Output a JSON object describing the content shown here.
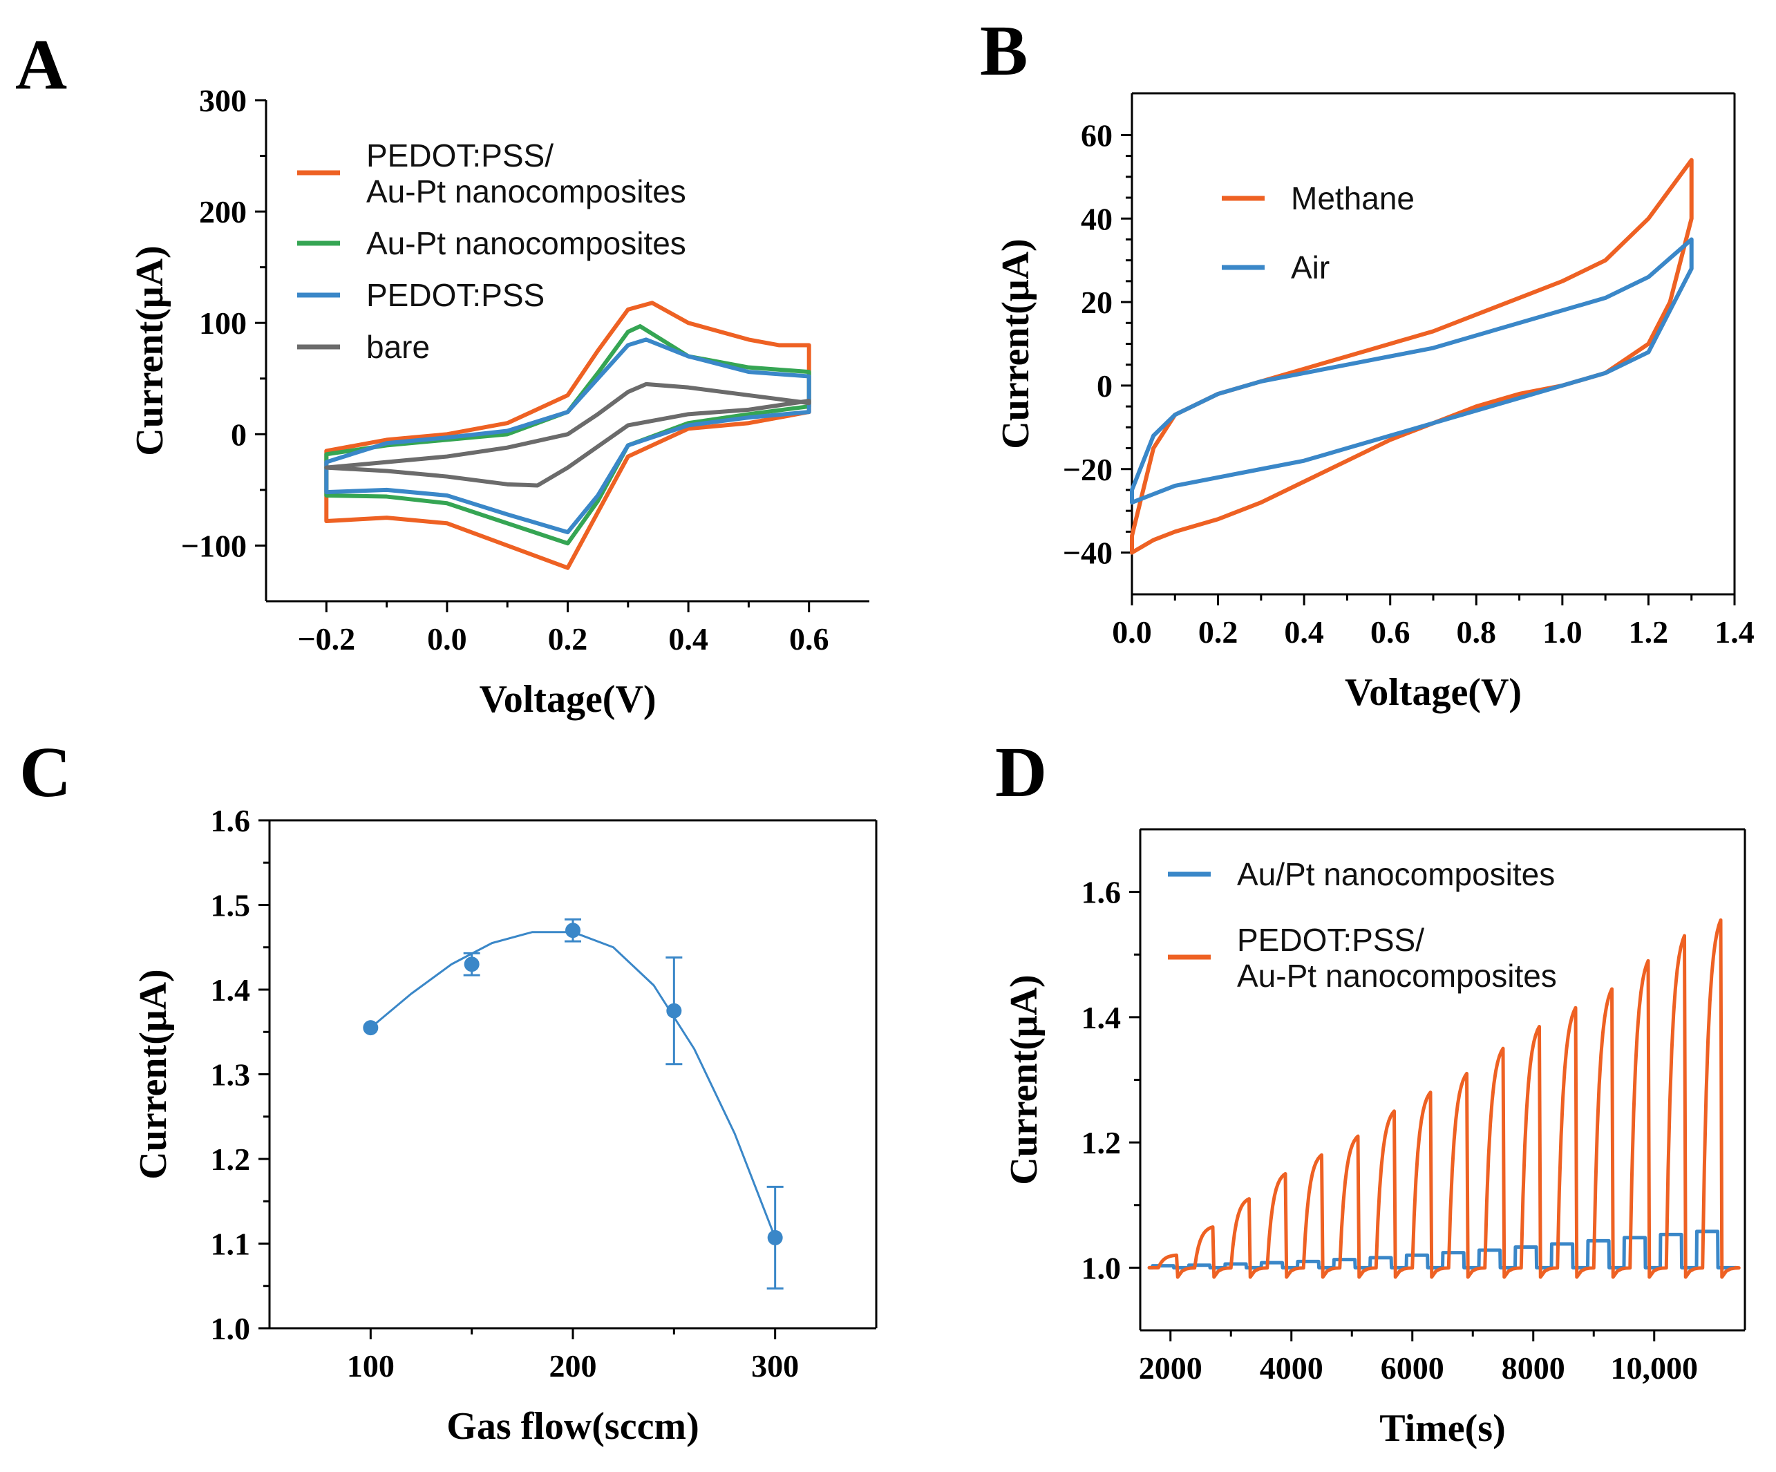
{
  "figure_title": "",
  "colors": {
    "orange": "#EE6123",
    "green": "#35A553",
    "blue": "#3A87C8",
    "gray": "#6B6B6B",
    "axis": "#000000"
  },
  "chart_data": [
    {
      "panel": "A",
      "type": "line",
      "title": "",
      "xlabel": "Voltage(V)",
      "ylabel": "Current(μA)",
      "xlim": [
        -0.3,
        0.7
      ],
      "ylim": [
        -150,
        300
      ],
      "xticks": [
        -0.2,
        0.0,
        0.2,
        0.4,
        0.6
      ],
      "xtick_labels": [
        "−0.2",
        "0.0",
        "0.2",
        "0.4",
        "0.6"
      ],
      "yticks": [
        -100,
        0,
        100,
        200,
        300
      ],
      "ytick_labels": [
        "−100",
        "0",
        "100",
        "200",
        "300"
      ],
      "legend_position": "top-left",
      "legend_entries": [
        {
          "label_lines": [
            "PEDOT:PSS/",
            "Au-Pt nanocomposites"
          ],
          "color": "#EE6123"
        },
        {
          "label_lines": [
            "Au-Pt nanocomposites"
          ],
          "color": "#35A553"
        },
        {
          "label_lines": [
            "PEDOT:PSS"
          ],
          "color": "#3A87C8"
        },
        {
          "label_lines": [
            "bare"
          ],
          "color": "#6B6B6B"
        }
      ],
      "series": [
        {
          "name": "PEDOT:PSS/ Au-Pt nanocomposites",
          "color": "#EE6123",
          "x": [
            -0.2,
            -0.1,
            0.0,
            0.1,
            0.2,
            0.25,
            0.3,
            0.34,
            0.4,
            0.5,
            0.55,
            0.6,
            0.6,
            0.5,
            0.4,
            0.3,
            0.25,
            0.2,
            0.1,
            0.0,
            -0.1,
            -0.2,
            -0.2
          ],
          "y": [
            -15,
            -5,
            0,
            10,
            35,
            75,
            112,
            118,
            100,
            85,
            80,
            80,
            20,
            10,
            5,
            -20,
            -70,
            -120,
            -100,
            -80,
            -75,
            -78,
            -15
          ]
        },
        {
          "name": "Au-Pt nanocomposites",
          "color": "#35A553",
          "x": [
            -0.2,
            -0.1,
            0.0,
            0.1,
            0.2,
            0.25,
            0.3,
            0.32,
            0.4,
            0.5,
            0.6,
            0.6,
            0.5,
            0.4,
            0.3,
            0.25,
            0.2,
            0.1,
            0.0,
            -0.1,
            -0.2,
            -0.2
          ],
          "y": [
            -18,
            -10,
            -5,
            0,
            20,
            55,
            92,
            97,
            70,
            60,
            56,
            25,
            18,
            10,
            -10,
            -60,
            -98,
            -80,
            -62,
            -56,
            -55,
            -18
          ]
        },
        {
          "name": "PEDOT:PSS",
          "color": "#3A87C8",
          "x": [
            -0.2,
            -0.1,
            0.0,
            0.1,
            0.2,
            0.25,
            0.3,
            0.33,
            0.4,
            0.5,
            0.6,
            0.6,
            0.5,
            0.4,
            0.3,
            0.25,
            0.2,
            0.1,
            0.0,
            -0.1,
            -0.2,
            -0.2
          ],
          "y": [
            -25,
            -8,
            -3,
            3,
            20,
            50,
            80,
            85,
            70,
            56,
            52,
            20,
            15,
            8,
            -10,
            -55,
            -88,
            -72,
            -55,
            -50,
            -52,
            -25
          ]
        },
        {
          "name": "bare",
          "color": "#6B6B6B",
          "x": [
            -0.2,
            -0.1,
            0.0,
            0.1,
            0.2,
            0.25,
            0.3,
            0.33,
            0.4,
            0.5,
            0.6,
            0.6,
            0.5,
            0.4,
            0.3,
            0.2,
            0.15,
            0.1,
            0.0,
            -0.1,
            -0.2
          ],
          "y": [
            -30,
            -25,
            -20,
            -12,
            0,
            18,
            38,
            45,
            42,
            35,
            28,
            30,
            22,
            18,
            8,
            -30,
            -46,
            -45,
            -38,
            -33,
            -30
          ]
        }
      ]
    },
    {
      "panel": "B",
      "type": "line",
      "title": "",
      "xlabel": "Voltage(V)",
      "ylabel": "Current(μA)",
      "xlim": [
        0.0,
        1.4
      ],
      "ylim": [
        -50,
        70
      ],
      "xticks": [
        0.0,
        0.2,
        0.4,
        0.6,
        0.8,
        1.0,
        1.2,
        1.4
      ],
      "xtick_labels": [
        "0.0",
        "0.2",
        "0.4",
        "0.6",
        "0.8",
        "1.0",
        "1.2",
        "1.4"
      ],
      "yticks": [
        -40,
        -20,
        0,
        20,
        40,
        60
      ],
      "ytick_labels": [
        "−40",
        "−20",
        "0",
        "20",
        "40",
        "60"
      ],
      "legend_position": "upper-left",
      "legend_entries": [
        {
          "label_lines": [
            "Methane"
          ],
          "color": "#EE6123"
        },
        {
          "label_lines": [
            "Air"
          ],
          "color": "#3A87C8"
        }
      ],
      "series": [
        {
          "name": "Methane",
          "color": "#EE6123",
          "x": [
            0.0,
            0.05,
            0.1,
            0.2,
            0.3,
            0.4,
            0.5,
            0.6,
            0.7,
            0.8,
            0.9,
            1.0,
            1.1,
            1.2,
            1.3,
            1.3,
            1.25,
            1.2,
            1.1,
            1.0,
            0.9,
            0.8,
            0.7,
            0.6,
            0.5,
            0.4,
            0.3,
            0.2,
            0.1,
            0.05,
            0.0,
            0.0
          ],
          "y": [
            -36,
            -15,
            -7,
            -2,
            1,
            4,
            7,
            10,
            13,
            17,
            21,
            25,
            30,
            40,
            54,
            40,
            20,
            10,
            3,
            0,
            -2,
            -5,
            -9,
            -13,
            -18,
            -23,
            -28,
            -32,
            -35,
            -37,
            -40,
            -36
          ]
        },
        {
          "name": "Air",
          "color": "#3A87C8",
          "x": [
            0.0,
            0.05,
            0.1,
            0.2,
            0.3,
            0.4,
            0.5,
            0.6,
            0.7,
            0.8,
            0.9,
            1.0,
            1.1,
            1.2,
            1.3,
            1.3,
            1.2,
            1.1,
            1.0,
            0.9,
            0.8,
            0.7,
            0.6,
            0.5,
            0.4,
            0.3,
            0.2,
            0.1,
            0.05,
            0.0,
            0.0
          ],
          "y": [
            -25,
            -12,
            -7,
            -2,
            1,
            3,
            5,
            7,
            9,
            12,
            15,
            18,
            21,
            26,
            35,
            28,
            8,
            3,
            0,
            -3,
            -6,
            -9,
            -12,
            -15,
            -18,
            -20,
            -22,
            -24,
            -26,
            -28,
            -25
          ]
        }
      ]
    },
    {
      "panel": "C",
      "type": "scatter",
      "title": "",
      "xlabel": "Gas flow(sccm)",
      "ylabel": "Current(μA)",
      "xlim": [
        50,
        350
      ],
      "ylim": [
        1.0,
        1.6
      ],
      "xticks": [
        100,
        200,
        300
      ],
      "xtick_labels": [
        "100",
        "200",
        "300"
      ],
      "yticks": [
        1.0,
        1.1,
        1.2,
        1.3,
        1.4,
        1.5,
        1.6
      ],
      "ytick_labels": [
        "1.0",
        "1.1",
        "1.2",
        "1.3",
        "1.4",
        "1.5",
        "1.6"
      ],
      "series": [
        {
          "name": "Current",
          "color": "#3A87C8",
          "x": [
            100,
            150,
            200,
            250,
            300
          ],
          "y": [
            1.355,
            1.43,
            1.47,
            1.375,
            1.107
          ],
          "error": [
            0.0,
            0.013,
            0.013,
            0.063,
            0.06
          ]
        }
      ],
      "fit_curve": {
        "color": "#3A87C8",
        "x": [
          100,
          120,
          140,
          160,
          180,
          200,
          220,
          240,
          260,
          280,
          300
        ],
        "y": [
          1.355,
          1.395,
          1.43,
          1.455,
          1.468,
          1.468,
          1.45,
          1.405,
          1.33,
          1.23,
          1.107
        ]
      }
    },
    {
      "panel": "D",
      "type": "line",
      "title": "",
      "xlabel": "Time(s)",
      "ylabel": "Current(μA)",
      "xlim": [
        1500,
        11500
      ],
      "ylim": [
        0.9,
        1.7
      ],
      "xticks": [
        2000,
        4000,
        6000,
        8000,
        10000
      ],
      "xtick_labels": [
        "2000",
        "4000",
        "6000",
        "8000",
        "10,000"
      ],
      "yticks": [
        1.0,
        1.2,
        1.4,
        1.6
      ],
      "ytick_labels": [
        "1.0",
        "1.2",
        "1.4",
        "1.6"
      ],
      "legend_position": "top-left",
      "legend_entries": [
        {
          "label_lines": [
            "Au/Pt nanocomposites"
          ],
          "color": "#3A87C8"
        },
        {
          "label_lines": [
            "PEDOT:PSS/",
            "Au-Pt nanocomposites"
          ],
          "color": "#EE6123"
        }
      ],
      "pulse_series": [
        {
          "name": "Au/Pt nanocomposites",
          "color": "#3A87C8",
          "shape": "step",
          "baseline": 1.0,
          "pulse_starts": [
            1700,
            2300,
            2900,
            3500,
            4100,
            4700,
            5300,
            5900,
            6500,
            7100,
            7700,
            8300,
            8900,
            9500,
            10100,
            10700
          ],
          "pulse_peaks": [
            1.003,
            1.004,
            1.006,
            1.008,
            1.01,
            1.013,
            1.016,
            1.02,
            1.024,
            1.028,
            1.033,
            1.038,
            1.043,
            1.048,
            1.053,
            1.058
          ],
          "pulse_width": 350
        },
        {
          "name": "PEDOT:PSS/ Au-Pt nanocomposites",
          "color": "#EE6123",
          "shape": "exponential",
          "baseline": 1.0,
          "pulse_starts": [
            1800,
            2400,
            3000,
            3600,
            4200,
            4800,
            5400,
            6000,
            6600,
            7200,
            7800,
            8400,
            9000,
            9600,
            10200,
            10800
          ],
          "pulse_peaks": [
            1.02,
            1.065,
            1.11,
            1.15,
            1.18,
            1.21,
            1.25,
            1.28,
            1.31,
            1.35,
            1.385,
            1.415,
            1.445,
            1.49,
            1.53,
            1.555
          ],
          "pulse_width": 300
        }
      ]
    }
  ]
}
